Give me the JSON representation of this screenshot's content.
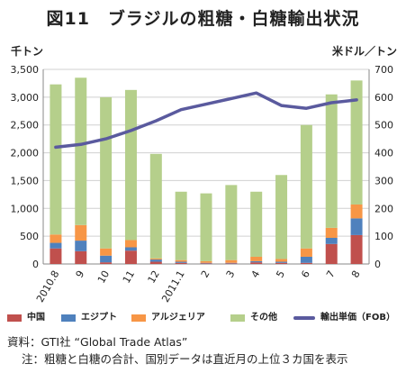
{
  "chart_data": {
    "type": "bar",
    "title": "図11　ブラジルの粗糖・白糖輸出状況",
    "ylabel": "千トン",
    "y2label": "米ドル／トン",
    "ylim": [
      0,
      3500
    ],
    "y2lim": [
      0,
      700
    ],
    "yticks": [
      "0",
      "500",
      "1,000",
      "1,500",
      "2,000",
      "2,500",
      "3,000",
      "3,500"
    ],
    "y2ticks": [
      "0",
      "100",
      "200",
      "300",
      "400",
      "500",
      "600",
      "700"
    ],
    "categories": [
      "2010.8",
      "9",
      "10",
      "11",
      "12",
      "2011.1",
      "2",
      "3",
      "4",
      "5",
      "6",
      "7",
      "8"
    ],
    "stacked": true,
    "grid": true,
    "legend_position": "bottom",
    "series": [
      {
        "name": "中国",
        "color": "#c0504d",
        "values": [
          280,
          230,
          30,
          240,
          40,
          20,
          10,
          10,
          30,
          20,
          20,
          360,
          520
        ]
      },
      {
        "name": "エジプト",
        "color": "#4f81bd",
        "values": [
          100,
          190,
          120,
          60,
          40,
          20,
          10,
          10,
          20,
          20,
          110,
          110,
          300
        ]
      },
      {
        "name": "アルジェリア",
        "color": "#f79646",
        "values": [
          150,
          280,
          130,
          130,
          20,
          30,
          30,
          50,
          80,
          50,
          150,
          180,
          250
        ]
      },
      {
        "name": "その他",
        "color": "#b5cf8b",
        "values": [
          2700,
          2650,
          2720,
          2700,
          1880,
          1230,
          1220,
          1350,
          1170,
          1510,
          2220,
          2400,
          2230
        ]
      }
    ],
    "line_series": {
      "name": "輸出単価（FOB）",
      "color": "#5a5a9e",
      "axis": "right",
      "values": [
        420,
        430,
        450,
        480,
        515,
        555,
        575,
        595,
        615,
        570,
        560,
        580,
        590
      ]
    }
  },
  "notes": [
    "資料：GTI社 “Global Trade Atlas”",
    "注：粗糖と白糖の合計、国別データは直近月の上位３カ国を表示"
  ]
}
